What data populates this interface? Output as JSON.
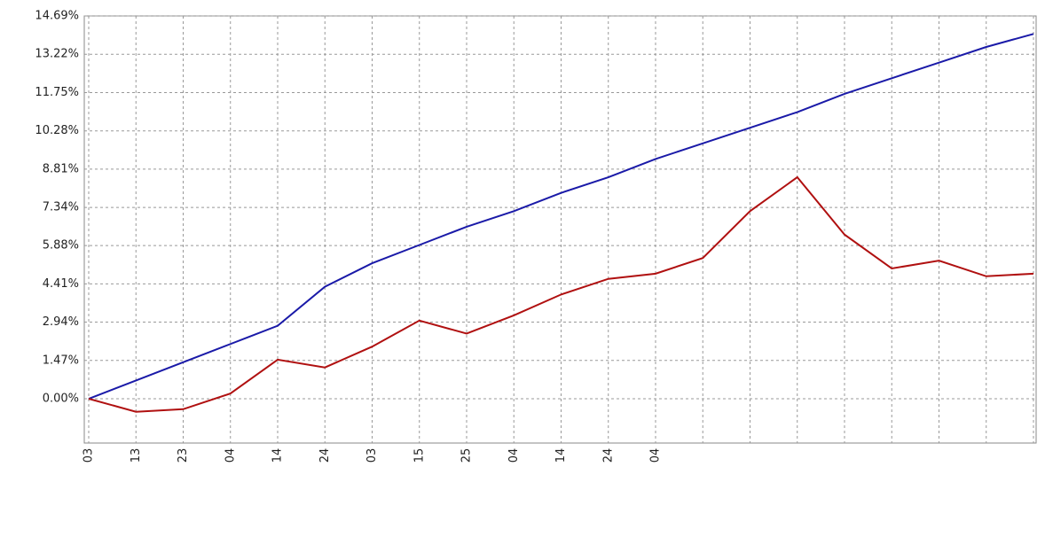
{
  "chart_data": {
    "type": "line",
    "categories": [
      "03",
      "13",
      "23",
      "04",
      "14",
      "24",
      "03",
      "15",
      "25",
      "04",
      "14",
      "24",
      "04",
      null,
      null,
      null,
      null,
      null,
      null,
      null,
      null
    ],
    "series": [
      {
        "color": "#1a1aa8",
        "values": [
          0,
          0.7,
          1.4,
          2.1,
          2.8,
          4.3,
          5.2,
          5.9,
          6.6,
          7.2,
          7.9,
          8.5,
          9.2,
          9.8,
          10.4,
          11.0,
          11.7,
          12.3,
          12.9,
          13.5,
          14.0
        ]
      },
      {
        "color": "#b01010",
        "values": [
          0,
          -0.5,
          -0.4,
          0.2,
          1.5,
          1.2,
          2.0,
          3.0,
          2.5,
          3.2,
          4.0,
          4.6,
          4.8,
          5.4,
          7.2,
          8.5,
          6.3,
          5.0,
          5.3,
          4.7,
          4.8
        ]
      }
    ],
    "ylim": [
      -1.7,
      14.69
    ],
    "yticks": [
      {
        "value": 0,
        "label": "0.00%"
      },
      {
        "value": 1.47,
        "label": "1.47%"
      },
      {
        "value": 2.94,
        "label": "2.94%"
      },
      {
        "value": 4.41,
        "label": "4.41%"
      },
      {
        "value": 5.88,
        "label": "5.88%"
      },
      {
        "value": 7.34,
        "label": "7.34%"
      },
      {
        "value": 8.81,
        "label": "8.81%"
      },
      {
        "value": 10.28,
        "label": "10.28%"
      },
      {
        "value": 11.75,
        "label": "11.75%"
      },
      {
        "value": 13.22,
        "label": "13.22%"
      },
      {
        "value": 14.69,
        "label": "14.69%"
      }
    ],
    "grid": true
  }
}
